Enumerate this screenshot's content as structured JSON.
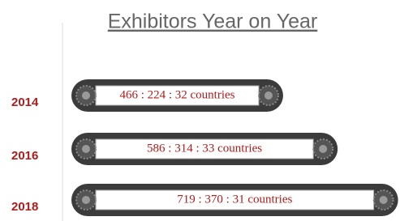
{
  "chart_data": {
    "type": "bar",
    "orientation": "horizontal",
    "title": "Exhibitors Year on Year",
    "categories": [
      "2014",
      "2016",
      "2018"
    ],
    "values": [
      466,
      586,
      719
    ],
    "value_labels": [
      "466 : 224 : 32 countries",
      "586 : 314 : 33 countries",
      "719 : 370 : 31 countries"
    ],
    "color": "#3b3b3b"
  }
}
